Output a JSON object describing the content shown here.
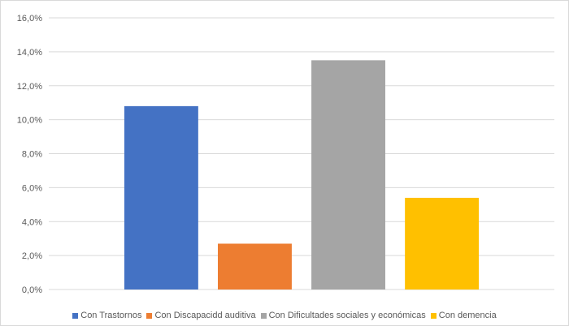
{
  "chart_data": {
    "type": "bar",
    "series": [
      {
        "name": "Con Trastornos",
        "value": 10.8,
        "color": "#4472c4"
      },
      {
        "name": "Con Discapacidd auditiva",
        "value": 2.7,
        "color": "#ed7d31"
      },
      {
        "name": "Con Dificultades sociales y económicas",
        "value": 13.5,
        "color": "#a5a5a5"
      },
      {
        "name": "Con demencia",
        "value": 5.4,
        "color": "#ffc000"
      }
    ],
    "y_ticks": [
      "0,0%",
      "2,0%",
      "4,0%",
      "6,0%",
      "8,0%",
      "10,0%",
      "12,0%",
      "14,0%",
      "16,0%"
    ],
    "ylim": [
      0,
      16
    ],
    "y_unit": "%",
    "grid": true,
    "legend_position": "bottom"
  }
}
